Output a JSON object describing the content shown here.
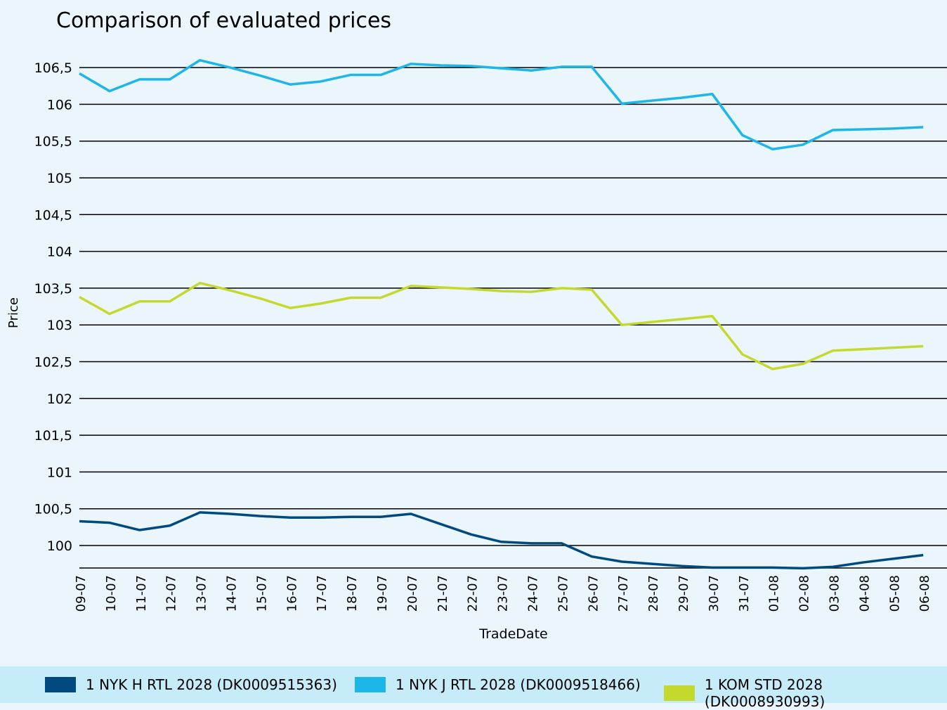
{
  "chart_data": {
    "type": "line",
    "title": "Comparison of evaluated prices",
    "xlabel": "TradeDate",
    "ylabel": "Price",
    "ylim": [
      99.69,
      106.6
    ],
    "yticks": [
      "100",
      "100,5",
      "101",
      "101,5",
      "102",
      "102,5",
      "103",
      "103,5",
      "104",
      "104,5",
      "105",
      "105,5",
      "106",
      "106,5"
    ],
    "grid": true,
    "legend_position": "bottom",
    "categories": [
      "09-07",
      "10-07",
      "11-07",
      "12-07",
      "13-07",
      "14-07",
      "15-07",
      "16-07",
      "17-07",
      "18-07",
      "19-07",
      "20-07",
      "21-07",
      "22-07",
      "23-07",
      "24-07",
      "25-07",
      "26-07",
      "27-07",
      "28-07",
      "29-07",
      "30-07",
      "31-07",
      "01-08",
      "02-08",
      "03-08",
      "04-08",
      "05-08",
      "06-08"
    ],
    "series": [
      {
        "name": "1 NYK H RTL 2028 (DK0009515363)",
        "color": "#004a7f",
        "values": [
          100.33,
          100.31,
          100.21,
          100.27,
          100.45,
          100.43,
          100.4,
          100.38,
          100.38,
          100.39,
          100.39,
          100.43,
          100.29,
          100.15,
          100.05,
          100.03,
          100.03,
          99.85,
          99.78,
          99.75,
          99.72,
          99.7,
          99.7,
          99.7,
          99.69,
          99.71,
          99.77,
          99.82,
          99.87
        ]
      },
      {
        "name": "1 NYK J RTL 2028 (DK0009518466)",
        "color": "#1cb6e8",
        "values": [
          106.42,
          106.18,
          106.34,
          106.34,
          106.6,
          106.5,
          106.39,
          106.27,
          106.31,
          106.4,
          106.4,
          106.55,
          106.53,
          106.52,
          106.49,
          106.46,
          106.51,
          106.51,
          106.01,
          106.05,
          106.09,
          106.14,
          105.58,
          105.39,
          105.45,
          105.65,
          105.66,
          105.67,
          105.69
        ]
      },
      {
        "name": "1 KOM STD 2028 (DK0008930993)",
        "color": "#c5d92d",
        "values": [
          103.38,
          103.15,
          103.32,
          103.32,
          103.57,
          103.47,
          103.36,
          103.23,
          103.29,
          103.37,
          103.37,
          103.53,
          103.51,
          103.49,
          103.46,
          103.45,
          103.5,
          103.48,
          103.0,
          103.04,
          103.08,
          103.12,
          102.6,
          102.4,
          102.47,
          102.65,
          102.67,
          102.69,
          102.71
        ]
      }
    ]
  }
}
